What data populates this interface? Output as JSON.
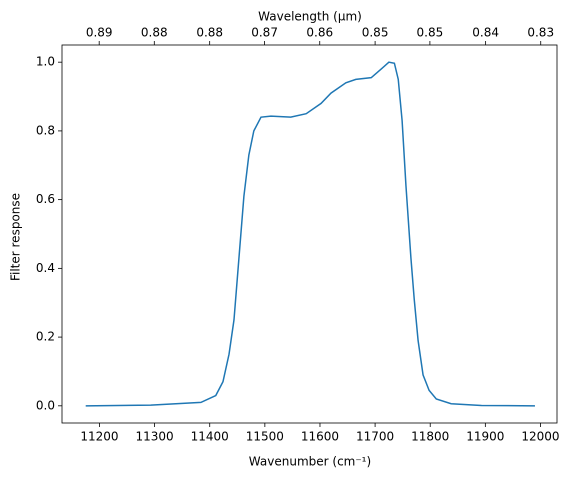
{
  "chart_data": {
    "type": "line",
    "top_axis_label": "Wavelength (μm)",
    "xlabel": "Wavenumber (cm⁻¹)",
    "ylabel": "Filter response",
    "x": [
      11175,
      11293,
      11384,
      11411,
      11424,
      11435,
      11444,
      11453,
      11462,
      11471,
      11480,
      11493,
      11511,
      11547,
      11575,
      11602,
      11620,
      11647,
      11665,
      11693,
      11711,
      11725,
      11735,
      11742,
      11749,
      11756,
      11765,
      11771,
      11778,
      11787,
      11798,
      11811,
      11838,
      11893,
      11990
    ],
    "series": [
      {
        "color": "#1f77b4",
        "values": [
          0,
          0.002,
          0.01,
          0.03,
          0.07,
          0.15,
          0.25,
          0.43,
          0.61,
          0.73,
          0.8,
          0.84,
          0.843,
          0.84,
          0.85,
          0.88,
          0.91,
          0.94,
          0.95,
          0.955,
          0.98,
          1.0,
          0.997,
          0.95,
          0.83,
          0.64,
          0.43,
          0.31,
          0.19,
          0.09,
          0.045,
          0.02,
          0.006,
          0.001,
          0
        ]
      }
    ],
    "xlim": [
      11132,
      12030
    ],
    "ylim": [
      -0.05,
      1.05
    ],
    "xticks": [
      11200,
      11300,
      11400,
      11500,
      11600,
      11700,
      11800,
      11900,
      12000
    ],
    "yticks": [
      {
        "value": 0,
        "label": "0.0"
      },
      0.2,
      0.4,
      0.6,
      0.8,
      {
        "value": 1,
        "label": "1.0"
      }
    ],
    "x2ticks": [
      {
        "value": 0.8929,
        "label": "0.89"
      },
      {
        "value": 0.885,
        "label": "0.88"
      },
      {
        "value": 0.8772,
        "label": "0.88"
      },
      {
        "value": 0.8696,
        "label": "0.87"
      },
      {
        "value": 0.8621,
        "label": "0.86"
      },
      {
        "value": 0.8547,
        "label": "0.85"
      },
      {
        "value": 0.8475,
        "label": "0.85"
      },
      {
        "value": 0.8403,
        "label": "0.84"
      },
      {
        "value": 0.8333,
        "label": "0.83"
      }
    ]
  }
}
